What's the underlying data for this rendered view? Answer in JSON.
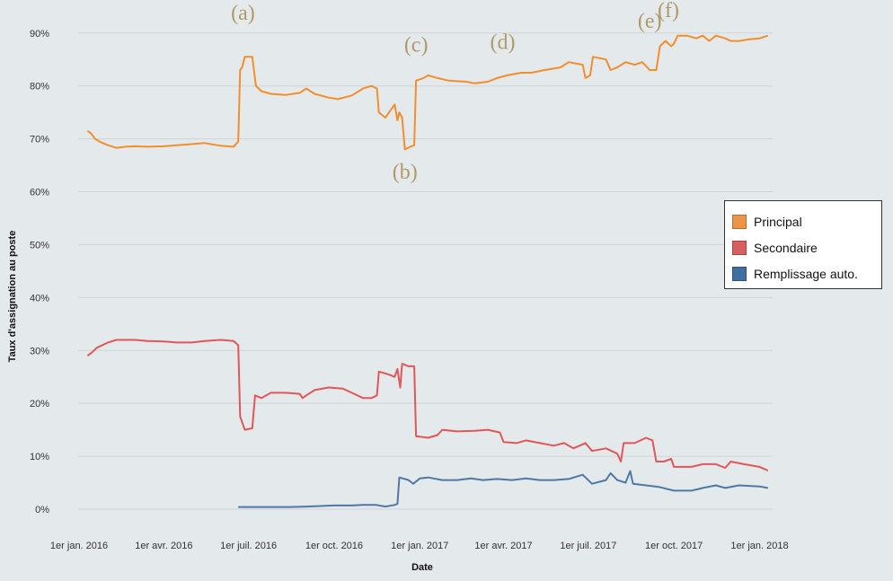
{
  "chart_data": {
    "type": "line",
    "title": "",
    "xlabel": "Date",
    "ylabel": "Taux d'assignation au poste",
    "x_range": [
      "2015-12-31",
      "2018-01-15"
    ],
    "ylim": [
      0,
      92
    ],
    "grid": "horizontal",
    "legend_position": "right",
    "x_ticks": [
      {
        "date": "2016-01-01",
        "label": "1er jan. 2016"
      },
      {
        "date": "2016-04-01",
        "label": "1er avr. 2016"
      },
      {
        "date": "2016-07-01",
        "label": "1er juil. 2016"
      },
      {
        "date": "2016-10-01",
        "label": "1er oct. 2016"
      },
      {
        "date": "2017-01-01",
        "label": "1er jan. 2017"
      },
      {
        "date": "2017-04-01",
        "label": "1er avr. 2017"
      },
      {
        "date": "2017-07-01",
        "label": "1er juil. 2017"
      },
      {
        "date": "2017-10-01",
        "label": "1er oct. 2017"
      },
      {
        "date": "2018-01-01",
        "label": "1er jan. 2018"
      }
    ],
    "y_ticks": [
      {
        "value": 0,
        "label": "0%"
      },
      {
        "value": 10,
        "label": "10%"
      },
      {
        "value": 20,
        "label": "20%"
      },
      {
        "value": 30,
        "label": "30%"
      },
      {
        "value": 40,
        "label": "40%"
      },
      {
        "value": 50,
        "label": "50%"
      },
      {
        "value": 60,
        "label": "60%"
      },
      {
        "value": 70,
        "label": "70%"
      },
      {
        "value": 80,
        "label": "80%"
      },
      {
        "value": 90,
        "label": "90%"
      }
    ],
    "series": [
      {
        "name": "Principal",
        "color": "#f28e2b",
        "points": [
          [
            "2016-01-10",
            71.5
          ],
          [
            "2016-01-14",
            71.0
          ],
          [
            "2016-01-18",
            70.0
          ],
          [
            "2016-01-25",
            69.3
          ],
          [
            "2016-02-01",
            68.8
          ],
          [
            "2016-02-10",
            68.3
          ],
          [
            "2016-02-20",
            68.5
          ],
          [
            "2016-03-01",
            68.6
          ],
          [
            "2016-03-15",
            68.5
          ],
          [
            "2016-04-01",
            68.6
          ],
          [
            "2016-04-15",
            68.8
          ],
          [
            "2016-05-01",
            69.0
          ],
          [
            "2016-05-15",
            69.2
          ],
          [
            "2016-06-01",
            68.7
          ],
          [
            "2016-06-15",
            68.5
          ],
          [
            "2016-06-20",
            69.5
          ],
          [
            "2016-06-22",
            83.0
          ],
          [
            "2016-06-24",
            83.5
          ],
          [
            "2016-06-27",
            85.5
          ],
          [
            "2016-07-05",
            85.5
          ],
          [
            "2016-07-09",
            80.0
          ],
          [
            "2016-07-15",
            79.0
          ],
          [
            "2016-07-25",
            78.5
          ],
          [
            "2016-08-10",
            78.3
          ],
          [
            "2016-08-25",
            78.7
          ],
          [
            "2016-09-01",
            79.5
          ],
          [
            "2016-09-10",
            78.5
          ],
          [
            "2016-09-25",
            77.8
          ],
          [
            "2016-10-05",
            77.5
          ],
          [
            "2016-10-20",
            78.2
          ],
          [
            "2016-11-01",
            79.5
          ],
          [
            "2016-11-10",
            80.0
          ],
          [
            "2016-11-16",
            79.5
          ],
          [
            "2016-11-18",
            75.0
          ],
          [
            "2016-11-25",
            74.0
          ],
          [
            "2016-12-01",
            75.5
          ],
          [
            "2016-12-05",
            76.5
          ],
          [
            "2016-12-08",
            73.5
          ],
          [
            "2016-12-10",
            75.0
          ],
          [
            "2016-12-13",
            74.0
          ],
          [
            "2016-12-16",
            68.0
          ],
          [
            "2016-12-22",
            68.5
          ],
          [
            "2016-12-26",
            68.8
          ],
          [
            "2016-12-28",
            81.0
          ],
          [
            "2017-01-05",
            81.5
          ],
          [
            "2017-01-10",
            82.0
          ],
          [
            "2017-01-20",
            81.5
          ],
          [
            "2017-02-01",
            81.0
          ],
          [
            "2017-02-20",
            80.8
          ],
          [
            "2017-03-01",
            80.5
          ],
          [
            "2017-03-15",
            80.8
          ],
          [
            "2017-03-25",
            81.5
          ],
          [
            "2017-04-05",
            82.0
          ],
          [
            "2017-04-20",
            82.5
          ],
          [
            "2017-05-01",
            82.5
          ],
          [
            "2017-05-15",
            83.0
          ],
          [
            "2017-06-01",
            83.5
          ],
          [
            "2017-06-10",
            84.5
          ],
          [
            "2017-06-25",
            84.0
          ],
          [
            "2017-06-28",
            81.5
          ],
          [
            "2017-07-03",
            82.0
          ],
          [
            "2017-07-06",
            85.5
          ],
          [
            "2017-07-20",
            85.0
          ],
          [
            "2017-07-25",
            83.0
          ],
          [
            "2017-08-01",
            83.5
          ],
          [
            "2017-08-10",
            84.5
          ],
          [
            "2017-08-20",
            84.0
          ],
          [
            "2017-08-28",
            84.5
          ],
          [
            "2017-09-05",
            83.0
          ],
          [
            "2017-09-12",
            83.0
          ],
          [
            "2017-09-16",
            87.5
          ],
          [
            "2017-09-22",
            88.5
          ],
          [
            "2017-09-28",
            87.5
          ],
          [
            "2017-10-01",
            88.0
          ],
          [
            "2017-10-05",
            89.5
          ],
          [
            "2017-10-15",
            89.5
          ],
          [
            "2017-10-25",
            89.0
          ],
          [
            "2017-11-01",
            89.5
          ],
          [
            "2017-11-08",
            88.5
          ],
          [
            "2017-11-15",
            89.5
          ],
          [
            "2017-11-25",
            89.0
          ],
          [
            "2017-12-01",
            88.5
          ],
          [
            "2017-12-10",
            88.5
          ],
          [
            "2017-12-20",
            88.8
          ],
          [
            "2018-01-01",
            89.0
          ],
          [
            "2018-01-10",
            89.5
          ]
        ]
      },
      {
        "name": "Secondaire",
        "color": "#e15759",
        "points": [
          [
            "2016-01-10",
            29.0
          ],
          [
            "2016-01-14",
            29.5
          ],
          [
            "2016-01-20",
            30.5
          ],
          [
            "2016-02-01",
            31.5
          ],
          [
            "2016-02-10",
            32.0
          ],
          [
            "2016-02-20",
            32.0
          ],
          [
            "2016-03-01",
            32.0
          ],
          [
            "2016-03-15",
            31.8
          ],
          [
            "2016-04-01",
            31.7
          ],
          [
            "2016-04-15",
            31.5
          ],
          [
            "2016-05-01",
            31.5
          ],
          [
            "2016-05-15",
            31.8
          ],
          [
            "2016-06-01",
            32.0
          ],
          [
            "2016-06-15",
            31.8
          ],
          [
            "2016-06-20",
            31.0
          ],
          [
            "2016-06-22",
            17.5
          ],
          [
            "2016-06-27",
            15.0
          ],
          [
            "2016-07-05",
            15.3
          ],
          [
            "2016-07-08",
            21.5
          ],
          [
            "2016-07-15",
            21.0
          ],
          [
            "2016-07-25",
            22.0
          ],
          [
            "2016-08-10",
            22.0
          ],
          [
            "2016-08-25",
            21.8
          ],
          [
            "2016-08-28",
            21.0
          ],
          [
            "2016-09-01",
            21.5
          ],
          [
            "2016-09-10",
            22.5
          ],
          [
            "2016-09-25",
            23.0
          ],
          [
            "2016-10-10",
            22.8
          ],
          [
            "2016-10-20",
            22.0
          ],
          [
            "2016-11-01",
            21.0
          ],
          [
            "2016-11-10",
            21.0
          ],
          [
            "2016-11-16",
            21.5
          ],
          [
            "2016-11-18",
            26.0
          ],
          [
            "2016-11-28",
            25.5
          ],
          [
            "2016-12-05",
            25.0
          ],
          [
            "2016-12-08",
            26.5
          ],
          [
            "2016-12-11",
            23.0
          ],
          [
            "2016-12-13",
            27.5
          ],
          [
            "2016-12-20",
            27.0
          ],
          [
            "2016-12-26",
            27.0
          ],
          [
            "2016-12-28",
            13.8
          ],
          [
            "2017-01-10",
            13.5
          ],
          [
            "2017-01-20",
            14.0
          ],
          [
            "2017-01-25",
            15.0
          ],
          [
            "2017-02-10",
            14.7
          ],
          [
            "2017-03-01",
            14.8
          ],
          [
            "2017-03-15",
            15.0
          ],
          [
            "2017-03-28",
            14.5
          ],
          [
            "2017-04-01",
            12.7
          ],
          [
            "2017-04-15",
            12.5
          ],
          [
            "2017-04-25",
            13.0
          ],
          [
            "2017-05-10",
            12.5
          ],
          [
            "2017-05-25",
            12.0
          ],
          [
            "2017-06-05",
            12.5
          ],
          [
            "2017-06-15",
            11.5
          ],
          [
            "2017-06-28",
            12.5
          ],
          [
            "2017-07-05",
            11.0
          ],
          [
            "2017-07-20",
            11.5
          ],
          [
            "2017-08-01",
            10.5
          ],
          [
            "2017-08-05",
            9.0
          ],
          [
            "2017-08-08",
            12.5
          ],
          [
            "2017-08-20",
            12.5
          ],
          [
            "2017-09-01",
            13.5
          ],
          [
            "2017-09-08",
            13.0
          ],
          [
            "2017-09-12",
            9.0
          ],
          [
            "2017-09-20",
            9.0
          ],
          [
            "2017-09-28",
            9.5
          ],
          [
            "2017-10-01",
            8.0
          ],
          [
            "2017-10-10",
            8.0
          ],
          [
            "2017-10-20",
            8.0
          ],
          [
            "2017-11-01",
            8.5
          ],
          [
            "2017-11-15",
            8.5
          ],
          [
            "2017-11-25",
            7.8
          ],
          [
            "2017-12-01",
            9.0
          ],
          [
            "2017-12-15",
            8.5
          ],
          [
            "2018-01-01",
            8.0
          ],
          [
            "2018-01-10",
            7.3
          ]
        ]
      },
      {
        "name": "Remplissage auto.",
        "color": "#4e79a7",
        "points": [
          [
            "2016-06-20",
            0.4
          ],
          [
            "2016-07-15",
            0.4
          ],
          [
            "2016-08-15",
            0.4
          ],
          [
            "2016-09-01",
            0.5
          ],
          [
            "2016-10-01",
            0.7
          ],
          [
            "2016-10-20",
            0.7
          ],
          [
            "2016-11-01",
            0.8
          ],
          [
            "2016-11-15",
            0.8
          ],
          [
            "2016-11-25",
            0.5
          ],
          [
            "2016-12-05",
            0.8
          ],
          [
            "2016-12-08",
            1.0
          ],
          [
            "2016-12-10",
            6.0
          ],
          [
            "2016-12-20",
            5.5
          ],
          [
            "2016-12-25",
            4.8
          ],
          [
            "2017-01-01",
            5.8
          ],
          [
            "2017-01-10",
            6.0
          ],
          [
            "2017-01-25",
            5.5
          ],
          [
            "2017-02-10",
            5.5
          ],
          [
            "2017-02-25",
            5.8
          ],
          [
            "2017-03-10",
            5.5
          ],
          [
            "2017-03-25",
            5.7
          ],
          [
            "2017-04-10",
            5.5
          ],
          [
            "2017-04-25",
            5.8
          ],
          [
            "2017-05-10",
            5.5
          ],
          [
            "2017-05-25",
            5.5
          ],
          [
            "2017-06-10",
            5.7
          ],
          [
            "2017-06-25",
            6.5
          ],
          [
            "2017-07-05",
            4.8
          ],
          [
            "2017-07-20",
            5.5
          ],
          [
            "2017-07-25",
            6.8
          ],
          [
            "2017-08-01",
            5.5
          ],
          [
            "2017-08-10",
            5.0
          ],
          [
            "2017-08-15",
            7.2
          ],
          [
            "2017-08-18",
            4.8
          ],
          [
            "2017-09-01",
            4.5
          ],
          [
            "2017-09-15",
            4.2
          ],
          [
            "2017-10-01",
            3.5
          ],
          [
            "2017-10-20",
            3.5
          ],
          [
            "2017-11-01",
            4.0
          ],
          [
            "2017-11-15",
            4.5
          ],
          [
            "2017-11-25",
            4.0
          ],
          [
            "2017-12-10",
            4.5
          ],
          [
            "2018-01-01",
            4.3
          ],
          [
            "2018-01-10",
            4.0
          ]
        ]
      }
    ],
    "annotations": [
      {
        "text": "(a)",
        "date": "2016-06-25",
        "value": 92.5
      },
      {
        "text": "(b)",
        "date": "2016-12-16",
        "value": 62.5
      },
      {
        "text": "(c)",
        "date": "2016-12-28",
        "value": 86.5
      },
      {
        "text": "(d)",
        "date": "2017-03-31",
        "value": 87.0
      },
      {
        "text": "(e)",
        "date": "2017-09-05",
        "value": 91.0
      },
      {
        "text": "(f)",
        "date": "2017-09-25",
        "value": 93.0
      }
    ],
    "annotation_color": "#b09a6a"
  }
}
